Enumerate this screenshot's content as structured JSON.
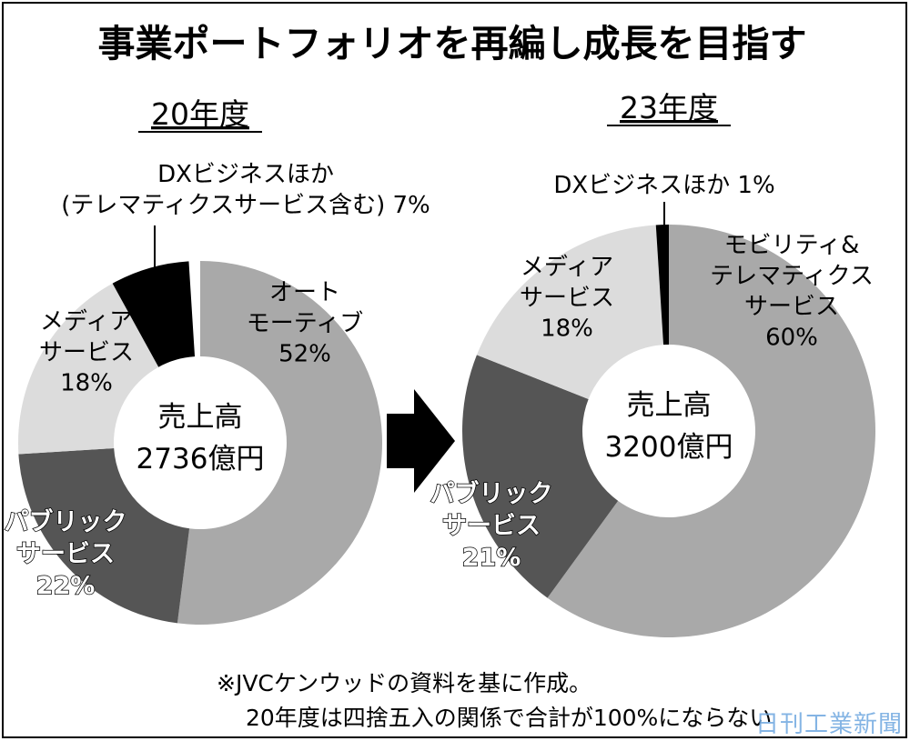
{
  "title": "事業ポートフォリオを再編し成長を目指す",
  "watermark": "日刊工業新聞",
  "footnote": [
    "※JVCケンウッドの資料を基に作成。",
    "20年度は四捨五入の関係で合計が100%にならない"
  ],
  "chart_data": [
    {
      "type": "pie",
      "title": "20年度",
      "center_label": [
        "売上高",
        "2736億円"
      ],
      "slices": [
        {
          "label": [
            "オート",
            "モーティブ",
            "52%"
          ],
          "value": 52,
          "color": "#a9a9a9"
        },
        {
          "label": [
            "パブリック",
            "サービス",
            "22%"
          ],
          "value": 22,
          "color": "#555555"
        },
        {
          "label": [
            "メディア",
            "サービス",
            "18%"
          ],
          "value": 18,
          "color": "#dcdcdc"
        },
        {
          "label": [
            "DXビジネスほか",
            "(テレマティクスサービス含む) 7%"
          ],
          "value": 7,
          "color": "#000000"
        }
      ]
    },
    {
      "type": "pie",
      "title": "23年度",
      "center_label": [
        "売上高",
        "3200億円"
      ],
      "slices": [
        {
          "label": [
            "モビリティ&",
            "テレマティクス",
            "サービス",
            "60%"
          ],
          "value": 60,
          "color": "#a9a9a9"
        },
        {
          "label": [
            "パブリック",
            "サービス",
            "21%"
          ],
          "value": 21,
          "color": "#555555"
        },
        {
          "label": [
            "メディア",
            "サービス",
            "18%"
          ],
          "value": 18,
          "color": "#dcdcdc"
        },
        {
          "label": [
            "DXビジネスほか 1%"
          ],
          "value": 1,
          "color": "#000000"
        }
      ]
    }
  ]
}
